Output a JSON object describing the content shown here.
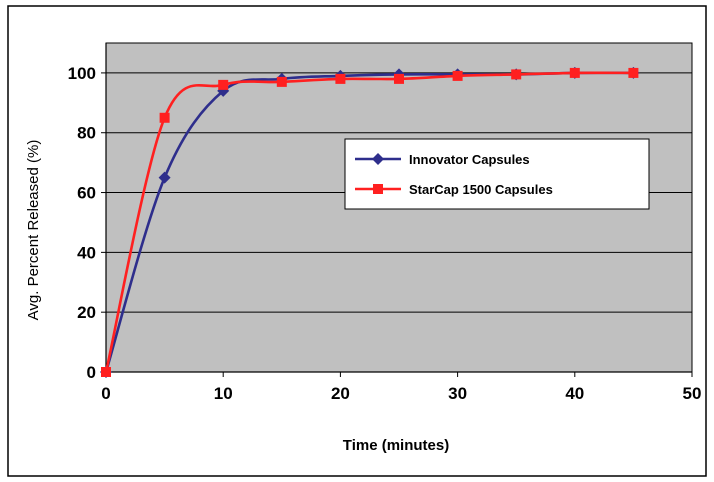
{
  "chart_data": {
    "type": "line",
    "xlabel": "Time (minutes)",
    "ylabel": "Avg. Percent Released (%)",
    "xlim": [
      0,
      50
    ],
    "ylim": [
      0,
      110
    ],
    "xticks": [
      0,
      10,
      20,
      30,
      40,
      50
    ],
    "yticks": [
      0,
      20,
      40,
      60,
      80,
      100
    ],
    "grid": "horizontal",
    "legend_position": "center-right",
    "plot_background": "#c0c0c0",
    "series": [
      {
        "name": "Innovator Capsules",
        "color": "#2e2e8c",
        "marker": "diamond",
        "x": [
          0,
          5,
          10,
          15,
          20,
          25,
          30,
          35,
          40,
          45
        ],
        "y": [
          0,
          65,
          94,
          98,
          99,
          99.5,
          99.5,
          99.5,
          100,
          100
        ]
      },
      {
        "name": "StarCap 1500 Capsules",
        "color": "#ff2020",
        "marker": "square",
        "x": [
          0,
          5,
          10,
          15,
          20,
          25,
          30,
          35,
          40,
          45
        ],
        "y": [
          0,
          85,
          96,
          97,
          98,
          98,
          99,
          99.5,
          100,
          100
        ]
      }
    ]
  }
}
